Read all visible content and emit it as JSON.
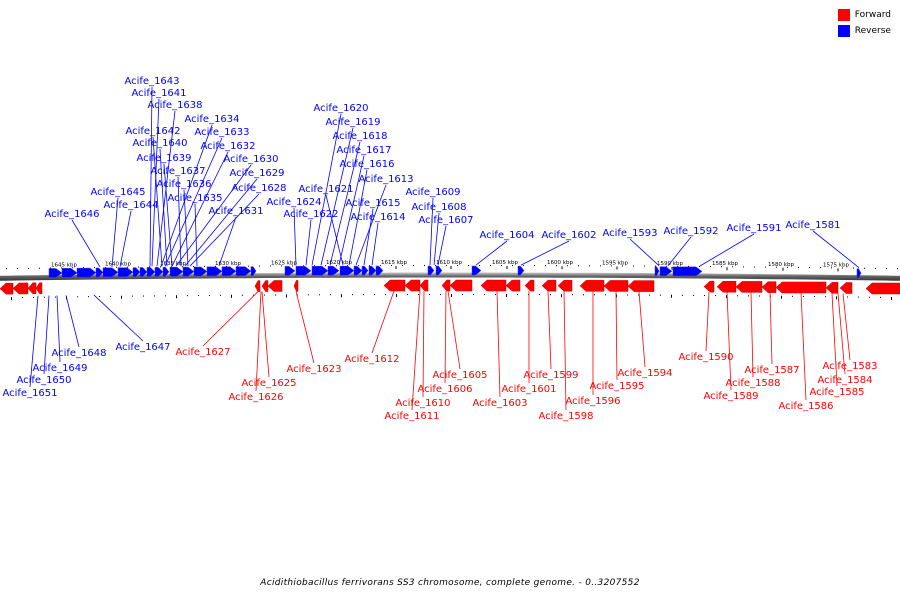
{
  "legend": {
    "forward_label": "Forward",
    "reverse_label": "Reverse",
    "forward_color": "#ff0000",
    "reverse_color": "#0000ff"
  },
  "caption": "Acidithiobacillus ferrivorans SS3 chromosome, complete genome. - 0..3207552",
  "ticks": [
    "1645 kbp",
    "1640 kbp",
    "1635 kbp",
    "1630 kbp",
    "1625 kbp",
    "1620 kbp",
    "1615 kbp",
    "1610 kbp",
    "1605 kbp",
    "1600 kbp",
    "1595 kbp",
    "1590 kbp",
    "1585 kbp",
    "1580 kbp",
    "1575 kbp"
  ],
  "reverse_genes": [
    "Acife_1643",
    "Acife_1641",
    "Acife_1638",
    "Acife_1634",
    "Acife_1642",
    "Acife_1633",
    "Acife_1640",
    "Acife_1632",
    "Acife_1639",
    "Acife_1630",
    "Acife_1637",
    "Acife_1629",
    "Acife_1636",
    "Acife_1628",
    "Acife_1645",
    "Acife_1635",
    "Acife_1644",
    "Acife_1631",
    "Acife_1646",
    "Acife_1620",
    "Acife_1619",
    "Acife_1618",
    "Acife_1617",
    "Acife_1616",
    "Acife_1613",
    "Acife_1621",
    "Acife_1624",
    "Acife_1615",
    "Acife_1622",
    "Acife_1614",
    "Acife_1609",
    "Acife_1608",
    "Acife_1607",
    "Acife_1604",
    "Acife_1602",
    "Acife_1593",
    "Acife_1592",
    "Acife_1591",
    "Acife_1581",
    "Acife_1647",
    "Acife_1648",
    "Acife_1649",
    "Acife_1650",
    "Acife_1651"
  ],
  "forward_genes": [
    "Acife_1627",
    "Acife_1625",
    "Acife_1626",
    "Acife_1623",
    "Acife_1612",
    "Acife_1605",
    "Acife_1606",
    "Acife_1610",
    "Acife_1611",
    "Acife_1603",
    "Acife_1601",
    "Acife_1599",
    "Acife_1598",
    "Acife_1596",
    "Acife_1595",
    "Acife_1594",
    "Acife_1590",
    "Acife_1589",
    "Acife_1588",
    "Acife_1587",
    "Acife_1586",
    "Acife_1585",
    "Acife_1584",
    "Acife_1583"
  ]
}
